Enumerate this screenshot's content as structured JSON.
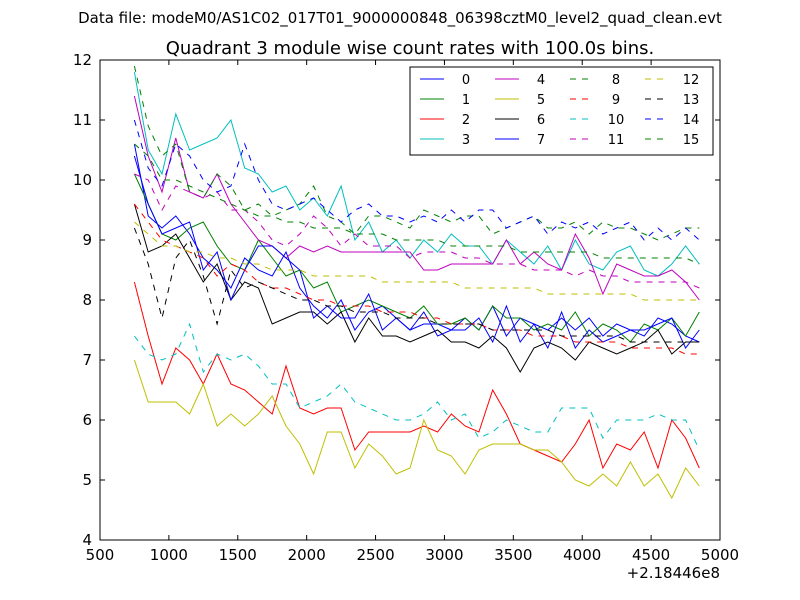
{
  "figure": {
    "suptitle": "Data file: modeM0/AS1C02_017T01_9000000848_06398cztM0_level2_quad_clean.evt"
  },
  "chart_data": {
    "type": "line",
    "title": "Quadrant 3 module wise count rates with 100.0s bins.",
    "xlabel": "",
    "ylabel": "",
    "x_offset_label": "+2.18446e8",
    "xlim": [
      500,
      5000
    ],
    "ylim": [
      4,
      12
    ],
    "xticks": [
      500,
      1000,
      1500,
      2000,
      2500,
      3000,
      3500,
      4000,
      4500,
      5000
    ],
    "yticks": [
      4,
      5,
      6,
      7,
      8,
      9,
      10,
      11,
      12
    ],
    "grid": false,
    "legend_position": "top-right",
    "x": [
      750,
      850,
      950,
      1050,
      1150,
      1250,
      1350,
      1450,
      1550,
      1650,
      1750,
      1850,
      1950,
      2050,
      2150,
      2250,
      2350,
      2450,
      2550,
      2650,
      2750,
      2850,
      2950,
      3050,
      3150,
      3250,
      3350,
      3450,
      3550,
      3650,
      3750,
      3850,
      3950,
      4050,
      4150,
      4250,
      4350,
      4450,
      4550,
      4650,
      4750,
      4850
    ],
    "series": [
      {
        "name": "0",
        "color": "#0000ff",
        "dash": "solid",
        "values": [
          10.6,
          9.4,
          9.2,
          9.4,
          9.1,
          8.7,
          8.5,
          8.2,
          8.7,
          8.5,
          8.4,
          8.8,
          8.2,
          7.9,
          7.7,
          8.0,
          7.5,
          7.8,
          7.9,
          7.7,
          7.5,
          7.6,
          7.6,
          7.5,
          7.7,
          7.5,
          7.9,
          7.4,
          7.7,
          7.6,
          7.5,
          7.7,
          7.5,
          7.7,
          7.4,
          7.6,
          7.5,
          7.4,
          7.7,
          7.6,
          7.4,
          7.3
        ]
      },
      {
        "name": "1",
        "color": "#008000",
        "dash": "solid",
        "values": [
          10.1,
          9.6,
          9.1,
          9.0,
          9.2,
          9.3,
          8.9,
          8.6,
          8.5,
          9.0,
          8.7,
          8.4,
          8.5,
          8.2,
          8.3,
          7.8,
          7.9,
          8.0,
          7.9,
          7.8,
          7.7,
          7.9,
          7.6,
          7.6,
          7.7,
          7.5,
          7.9,
          7.7,
          7.7,
          7.5,
          7.6,
          7.5,
          7.8,
          7.4,
          7.6,
          7.5,
          7.3,
          7.6,
          7.5,
          7.7,
          7.4,
          7.8
        ]
      },
      {
        "name": "2",
        "color": "#ff0000",
        "dash": "solid",
        "values": [
          8.3,
          7.4,
          6.6,
          7.2,
          7.0,
          6.6,
          7.1,
          6.6,
          6.5,
          6.3,
          6.1,
          6.9,
          6.2,
          6.1,
          6.2,
          6.2,
          5.5,
          5.8,
          5.8,
          5.8,
          5.8,
          5.9,
          5.8,
          6.1,
          5.9,
          5.8,
          6.5,
          6.1,
          5.6,
          5.5,
          5.4,
          5.3,
          5.6,
          6.0,
          5.2,
          5.6,
          5.5,
          5.8,
          5.2,
          6.0,
          5.7,
          5.2
        ]
      },
      {
        "name": "3",
        "color": "#00bfbf",
        "dash": "solid",
        "values": [
          11.8,
          10.5,
          10.1,
          11.1,
          10.5,
          10.6,
          10.7,
          11.0,
          10.2,
          10.1,
          9.8,
          9.9,
          9.5,
          9.7,
          9.4,
          9.9,
          9.0,
          9.3,
          8.8,
          9.0,
          8.7,
          9.0,
          8.8,
          9.1,
          8.9,
          8.9,
          8.6,
          9.0,
          8.8,
          8.6,
          8.9,
          8.5,
          9.0,
          8.6,
          8.5,
          8.8,
          8.9,
          8.5,
          8.4,
          8.6,
          8.9,
          8.6
        ]
      },
      {
        "name": "4",
        "color": "#bf00bf",
        "dash": "solid",
        "values": [
          11.4,
          10.4,
          9.8,
          10.7,
          9.8,
          9.7,
          10.1,
          9.6,
          9.3,
          9.0,
          8.9,
          8.7,
          8.9,
          8.8,
          8.9,
          8.8,
          8.8,
          8.8,
          8.8,
          8.8,
          8.8,
          8.5,
          8.5,
          8.6,
          8.6,
          8.6,
          8.6,
          9.0,
          8.6,
          8.8,
          8.6,
          8.5,
          9.1,
          8.7,
          8.1,
          8.6,
          8.5,
          8.4,
          8.4,
          8.5,
          8.3,
          8.0
        ]
      },
      {
        "name": "5",
        "color": "#bfbf00",
        "dash": "solid",
        "values": [
          7.0,
          6.3,
          6.3,
          6.3,
          6.1,
          6.6,
          5.9,
          6.1,
          5.9,
          6.1,
          6.4,
          5.9,
          5.6,
          5.1,
          5.8,
          5.8,
          5.2,
          5.6,
          5.4,
          5.1,
          5.2,
          6.0,
          5.5,
          5.4,
          5.1,
          5.5,
          5.6,
          5.6,
          5.6,
          5.5,
          5.5,
          5.3,
          5.0,
          4.9,
          5.1,
          4.9,
          5.3,
          4.9,
          5.1,
          4.7,
          5.2,
          4.9
        ]
      },
      {
        "name": "6",
        "color": "#000000",
        "dash": "solid",
        "values": [
          9.6,
          8.8,
          8.9,
          9.1,
          8.7,
          8.3,
          8.6,
          8.0,
          8.3,
          8.2,
          7.6,
          7.7,
          7.8,
          7.8,
          7.6,
          7.8,
          7.3,
          7.7,
          7.4,
          7.4,
          7.3,
          7.4,
          7.5,
          7.3,
          7.3,
          7.2,
          7.4,
          7.2,
          6.8,
          7.2,
          7.3,
          7.2,
          7.0,
          7.3,
          7.2,
          7.1,
          7.2,
          7.3,
          7.5,
          7.1,
          7.3,
          7.3
        ]
      },
      {
        "name": "7",
        "color": "#0000ff",
        "dash": "solid",
        "values": [
          10.4,
          9.6,
          9.1,
          9.2,
          9.3,
          8.5,
          8.8,
          8.0,
          8.5,
          8.9,
          8.9,
          8.7,
          8.5,
          7.7,
          7.9,
          7.7,
          7.7,
          8.1,
          7.5,
          7.7,
          7.5,
          7.8,
          7.4,
          7.5,
          7.5,
          7.7,
          7.3,
          7.9,
          7.3,
          7.6,
          7.2,
          7.8,
          7.2,
          7.5,
          7.3,
          7.4,
          7.5,
          7.5,
          7.6,
          7.7,
          7.2,
          7.5
        ]
      },
      {
        "name": "8",
        "color": "#008000",
        "dash": "dashed",
        "values": [
          11.9,
          10.9,
          10.4,
          10.6,
          9.8,
          9.7,
          10.1,
          9.9,
          9.5,
          9.6,
          9.4,
          9.5,
          9.6,
          9.9,
          9.4,
          9.3,
          9.1,
          9.4,
          9.4,
          9.3,
          9.2,
          9.5,
          9.4,
          9.3,
          9.4,
          9.4,
          9.1,
          9.2,
          9.3,
          9.4,
          9.2,
          9.2,
          9.3,
          9.1,
          9.3,
          9.2,
          9.2,
          9.1,
          9.0,
          9.1,
          9.2,
          9.2
        ]
      },
      {
        "name": "9",
        "color": "#ff0000",
        "dash": "dashed",
        "values": [
          9.6,
          9.3,
          9.0,
          8.9,
          8.8,
          8.7,
          8.4,
          8.6,
          8.5,
          8.3,
          8.2,
          8.2,
          8.1,
          8.0,
          8.0,
          7.9,
          7.9,
          7.9,
          7.8,
          7.8,
          7.8,
          7.7,
          7.7,
          7.6,
          7.6,
          7.6,
          7.5,
          7.5,
          7.5,
          7.4,
          7.4,
          7.4,
          7.3,
          7.3,
          7.3,
          7.3,
          7.2,
          7.2,
          7.2,
          7.2,
          7.1,
          7.1
        ]
      },
      {
        "name": "10",
        "color": "#00bfbf",
        "dash": "dashed",
        "values": [
          7.4,
          7.1,
          7.0,
          7.1,
          7.6,
          6.8,
          7.1,
          7.0,
          7.1,
          6.9,
          6.6,
          6.6,
          6.2,
          6.3,
          6.4,
          6.6,
          6.3,
          6.2,
          6.1,
          6.0,
          6.0,
          6.1,
          6.3,
          6.0,
          6.1,
          5.7,
          5.8,
          6.0,
          5.9,
          5.8,
          5.8,
          6.2,
          6.2,
          6.2,
          5.7,
          6.0,
          6.0,
          6.0,
          6.1,
          6.0,
          6.0,
          5.5
        ]
      },
      {
        "name": "11",
        "color": "#bf00bf",
        "dash": "dashed",
        "values": [
          10.1,
          10.0,
          9.5,
          9.9,
          9.8,
          9.7,
          9.8,
          9.5,
          9.5,
          9.3,
          9.0,
          8.9,
          9.1,
          9.4,
          9.2,
          8.9,
          9.1,
          8.9,
          8.9,
          8.9,
          8.7,
          8.8,
          8.8,
          8.8,
          8.7,
          8.7,
          8.6,
          8.6,
          8.6,
          8.5,
          8.5,
          8.5,
          8.4,
          8.5,
          8.4,
          8.4,
          8.3,
          8.3,
          8.3,
          8.3,
          8.3,
          8.2
        ]
      },
      {
        "name": "12",
        "color": "#bfbf00",
        "dash": "dashed",
        "values": [
          9.3,
          9.1,
          8.9,
          8.9,
          8.8,
          8.8,
          8.7,
          8.7,
          8.6,
          8.6,
          8.5,
          8.5,
          8.5,
          8.4,
          8.4,
          8.4,
          8.4,
          8.4,
          8.3,
          8.3,
          8.3,
          8.3,
          8.3,
          8.3,
          8.2,
          8.2,
          8.2,
          8.2,
          8.2,
          8.2,
          8.1,
          8.1,
          8.1,
          8.1,
          8.1,
          8.1,
          8.1,
          8.0,
          8.0,
          8.0,
          8.0,
          8.0
        ]
      },
      {
        "name": "13",
        "color": "#000000",
        "dash": "dashed",
        "values": [
          9.2,
          8.6,
          7.7,
          8.7,
          9.0,
          8.4,
          7.6,
          8.5,
          8.2,
          8.3,
          8.2,
          8.1,
          8.0,
          8.0,
          7.9,
          7.9,
          7.8,
          7.8,
          7.8,
          7.7,
          7.7,
          7.7,
          7.6,
          7.6,
          7.6,
          7.6,
          7.5,
          7.5,
          7.5,
          7.5,
          7.5,
          7.4,
          7.4,
          7.4,
          7.4,
          7.4,
          7.3,
          7.3,
          7.3,
          7.3,
          7.3,
          7.3
        ]
      },
      {
        "name": "14",
        "color": "#0000ff",
        "dash": "dashed",
        "values": [
          11.0,
          10.2,
          9.9,
          10.6,
          10.4,
          10.0,
          9.8,
          9.9,
          10.6,
          10.0,
          9.6,
          9.5,
          9.6,
          9.7,
          9.5,
          9.3,
          9.5,
          9.6,
          9.4,
          9.4,
          9.3,
          9.4,
          9.3,
          9.5,
          9.3,
          9.5,
          9.5,
          9.2,
          9.3,
          9.4,
          9.1,
          9.3,
          9.2,
          9.3,
          9.1,
          9.2,
          9.3,
          9.0,
          9.2,
          9.0,
          9.2,
          9.0
        ]
      },
      {
        "name": "15",
        "color": "#008000",
        "dash": "dashed",
        "values": [
          10.6,
          10.4,
          10.0,
          10.0,
          9.9,
          9.8,
          9.7,
          9.6,
          9.5,
          9.4,
          9.4,
          9.3,
          9.3,
          9.2,
          9.2,
          9.2,
          9.1,
          9.1,
          9.1,
          9.0,
          9.0,
          9.0,
          9.0,
          8.9,
          8.9,
          8.9,
          8.9,
          8.9,
          8.8,
          8.8,
          8.8,
          8.8,
          8.8,
          8.8,
          8.7,
          8.7,
          8.7,
          8.7,
          8.7,
          8.7,
          8.7,
          8.6
        ]
      }
    ]
  }
}
